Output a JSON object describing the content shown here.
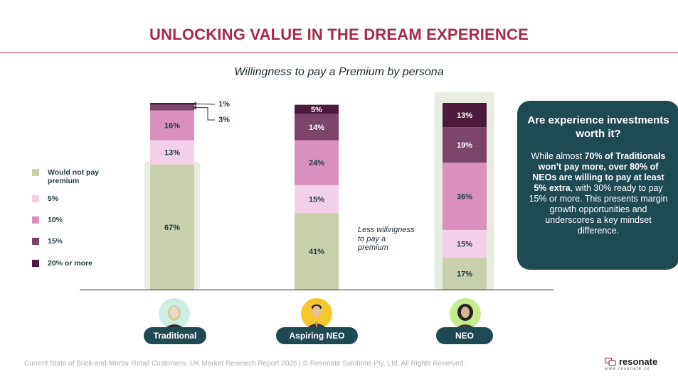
{
  "header": {
    "title": "UNLOCKING VALUE IN THE DREAM EXPERIENCE"
  },
  "chart_data": {
    "type": "bar",
    "stacked": true,
    "title": "Willingness to pay a Premium by persona",
    "categories": [
      "Traditional",
      "Aspiring NEO",
      "NEO"
    ],
    "series": [
      {
        "name": "Would not pay premium",
        "color": "#c7cfab",
        "values": [
          67,
          41,
          17
        ]
      },
      {
        "name": "5%",
        "color": "#f3d0e7",
        "values": [
          13,
          15,
          15
        ]
      },
      {
        "name": "10%",
        "color": "#d990bc",
        "values": [
          16,
          24,
          36
        ]
      },
      {
        "name": "15%",
        "color": "#7b4468",
        "values": [
          3,
          14,
          19
        ]
      },
      {
        "name": "20% or more",
        "color": "#4e1a3b",
        "values": [
          1,
          5,
          13
        ]
      }
    ],
    "labels": [
      [
        "67%",
        "13%",
        "16%",
        "",
        ""
      ],
      [
        "41%",
        "15%",
        "24%",
        "14%",
        "5%"
      ],
      [
        "17%",
        "15%",
        "36%",
        "19%",
        "13%"
      ]
    ],
    "ylim": [
      0,
      100
    ],
    "annotations": [
      "1%",
      "3%"
    ],
    "side_note": "Less willingness to pay a premium"
  },
  "personas": [
    {
      "name": "Traditional",
      "bg": "#cdeee2"
    },
    {
      "name": "Aspiring NEO",
      "bg": "#f5c62e"
    },
    {
      "name": "NEO",
      "bg": "#c6ea8f"
    }
  ],
  "callout": {
    "title": "Are experience investments worth it?",
    "body_pre": "While almost ",
    "body_b1": "70% of Traditionals won’t pay more, over 80% of NEOs are willing to pay at least 5% extra",
    "body_post": ", with 30% ready to pay 15% or more. This presents margin growth opportunities and underscores a key mindset difference."
  },
  "footer": {
    "text": "Current State of Brick-and-Mortar Retail Customers: UK Market Research Report 2025 | © Resonate Solutions Pty. Ltd. All Rights Reserved."
  },
  "logo": {
    "name": "resonate",
    "url": "www.resonate.cx"
  },
  "colors": {
    "title": "#a8294a",
    "navy": "#1e4a52",
    "highlight": "#e7ede0"
  }
}
